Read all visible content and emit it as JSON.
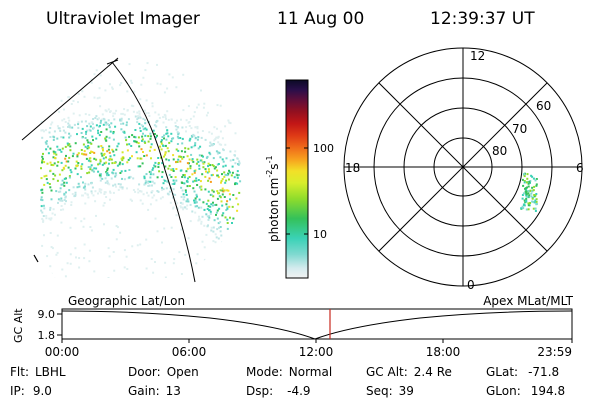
{
  "header": {
    "instrument": "Ultraviolet Imager",
    "date": "11 Aug 00",
    "time": "12:39:37 UT"
  },
  "image_panel": {
    "label_left": "Geographic Lat/Lon"
  },
  "colorbar": {
    "unit_label": "photon cm⁻²s⁻¹",
    "unit_prefix": "photon cm",
    "unit_exp1": "-2",
    "unit_mid": "s",
    "unit_exp2": "-1",
    "ticks": [
      "100",
      "10"
    ],
    "scale": "log"
  },
  "polar_plot": {
    "label": "Apex  MLat/MLT",
    "mlt_labels": {
      "top": "12",
      "right": "6",
      "bottom": "0",
      "left": "18"
    },
    "lat_labels": [
      "60",
      "70",
      "80"
    ]
  },
  "timeline": {
    "ylabel": "GC Alt",
    "yticks": [
      "9.0",
      "1.8"
    ],
    "xticks": [
      "00:00",
      "06:00",
      "12:00",
      "18:00",
      "23:59"
    ],
    "marker_time": "12:39",
    "marker_color": "#c8281e"
  },
  "footer": {
    "rows": [
      [
        {
          "label": "Flt:",
          "value": "LBHL"
        },
        {
          "label": "Door:",
          "value": "Open"
        },
        {
          "label": "Mode:",
          "value": "Normal"
        },
        {
          "label": "GC Alt:",
          "value": "2.4 Re"
        },
        {
          "label": "GLat:",
          "value": "-71.8"
        }
      ],
      [
        {
          "label": "IP:",
          "value": "9.0"
        },
        {
          "label": "Gain:",
          "value": "13"
        },
        {
          "label": "Dsp:",
          "value": "-4.9"
        },
        {
          "label": "Seq:",
          "value": "39"
        },
        {
          "label": "GLon:",
          "value": "194.8"
        }
      ]
    ]
  }
}
